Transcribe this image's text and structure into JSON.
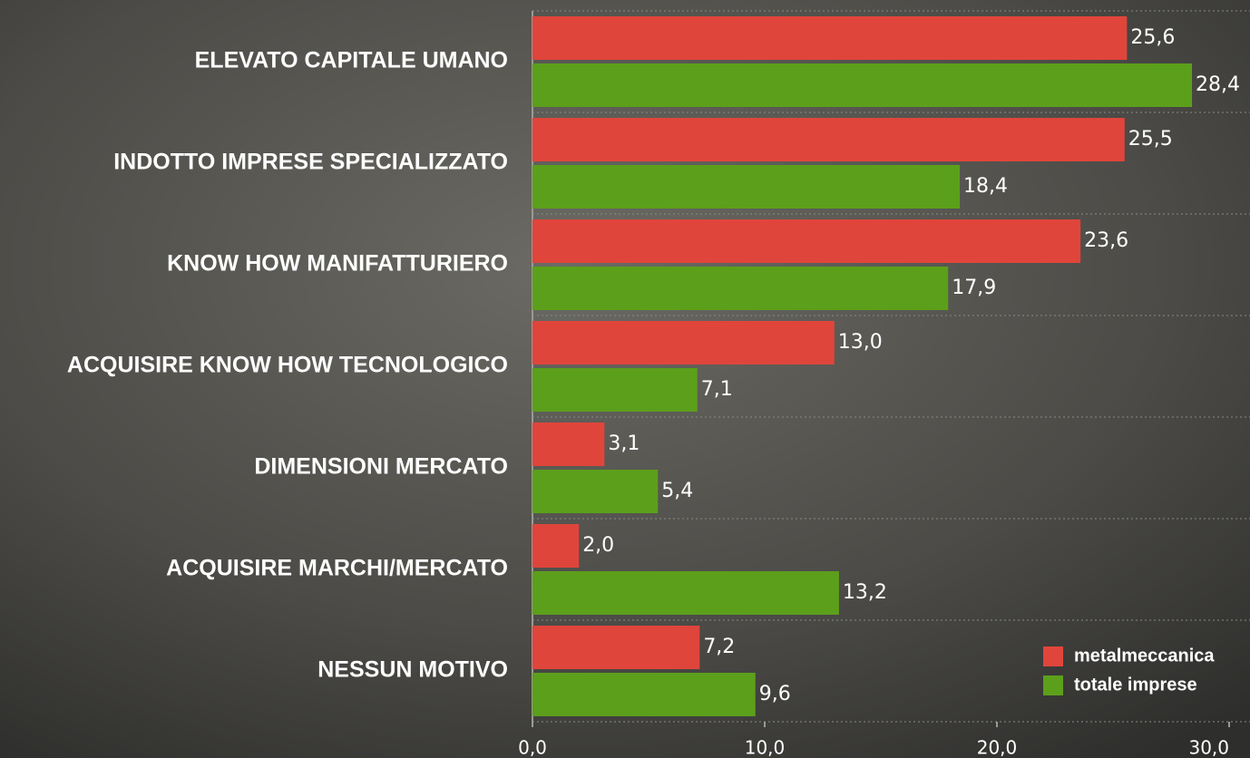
{
  "chart_data": {
    "type": "barh",
    "categories": [
      "ELEVATO CAPITALE UMANO",
      "INDOTTO IMPRESE SPECIALIZZATO",
      "KNOW HOW MANIFATTURIERO",
      "ACQUISIRE KNOW HOW TECNOLOGICO",
      "DIMENSIONI MERCATO",
      "ACQUISIRE MARCHI/MERCATO",
      "NESSUN MOTIVO"
    ],
    "series": [
      {
        "name": "metalmeccanica",
        "color": "#e0453b",
        "values": [
          25.6,
          25.5,
          23.6,
          13.0,
          3.1,
          2.0,
          7.2
        ],
        "value_labels": [
          "25,6",
          "25,5",
          "23,6",
          "13,0",
          "3,1",
          "2,0",
          "7,2"
        ]
      },
      {
        "name": "totale imprese",
        "color": "#5c9f1b",
        "values": [
          28.4,
          18.4,
          17.9,
          7.1,
          5.4,
          13.2,
          9.6
        ],
        "value_labels": [
          "28,4",
          "18,4",
          "17,9",
          "7,1",
          "5,4",
          "13,2",
          "9,6"
        ]
      }
    ],
    "xlim": [
      0,
      30
    ],
    "xticks": [
      {
        "value": 0,
        "label": "0,0"
      },
      {
        "value": 10,
        "label": "10,0"
      },
      {
        "value": 20,
        "label": "20,0"
      },
      {
        "value": 30,
        "label": "30,0"
      }
    ],
    "legend": "lower right"
  }
}
